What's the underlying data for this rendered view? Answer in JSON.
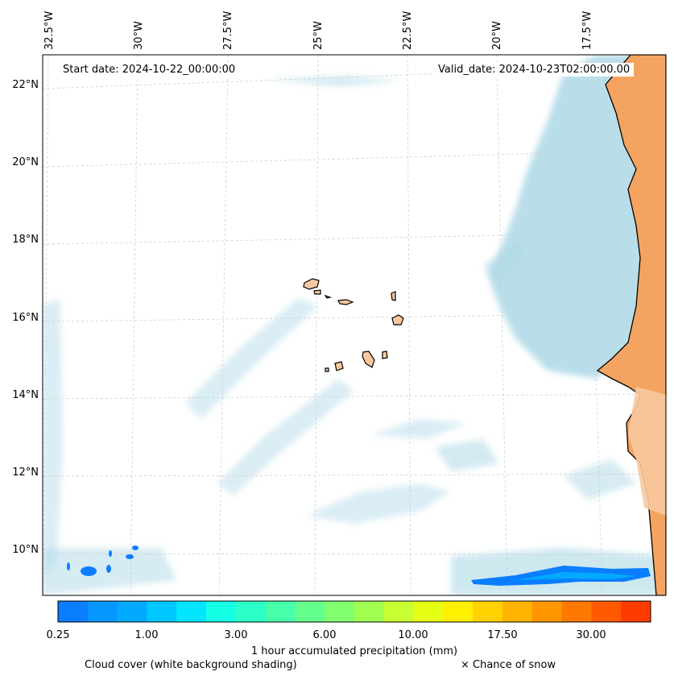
{
  "map": {
    "start_date": "Start date: 2024-10-22_00:00:00",
    "valid_date": "Valid_date: 2024-10-23T02:00:00.00",
    "lon_labels": [
      "32.5°W",
      "30°W",
      "27.5°W",
      "25°W",
      "22.5°W",
      "20°W",
      "17.5°W"
    ],
    "lat_labels": [
      "22°N",
      "20°N",
      "18°N",
      "16°N",
      "14°N",
      "12°N",
      "10°N"
    ],
    "colors": {
      "cloud": "#add8e6",
      "land": "#f4a460",
      "land_light": "#f8c9a0",
      "coast": "#000000",
      "grid": "#c8c8c8"
    }
  },
  "colorbar": {
    "label": "1 hour accumulated precipitation (mm)",
    "ticks": [
      "0.25",
      "1.00",
      "3.00",
      "6.00",
      "10.00",
      "17.50",
      "30.00"
    ],
    "colors": [
      "#0a7eff",
      "#0696ff",
      "#02aaff",
      "#00c8ff",
      "#00e6ff",
      "#14ffe6",
      "#2dffc8",
      "#46ffaa",
      "#64ff8c",
      "#82ff6e",
      "#a0ff50",
      "#c8ff32",
      "#e6ff14",
      "#fff000",
      "#ffd200",
      "#ffb400",
      "#ff9600",
      "#ff7800",
      "#ff5a00",
      "#ff3c00"
    ]
  },
  "footer": {
    "cloud_note": "Cloud cover (white background shading)",
    "snow_note": "× Chance of snow"
  }
}
